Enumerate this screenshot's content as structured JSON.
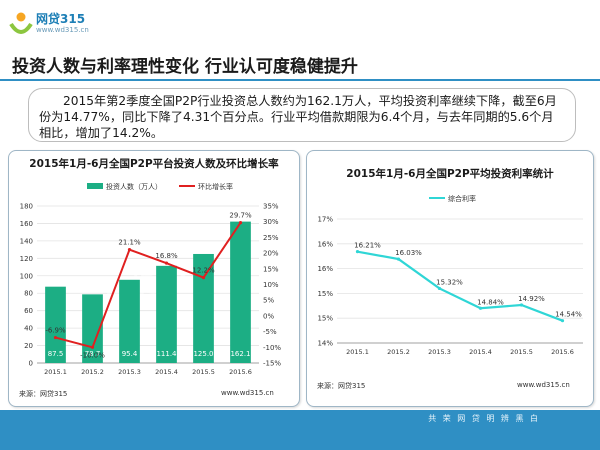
{
  "logo": {
    "name": "网贷315",
    "url": "www.wd315.cn"
  },
  "title": "投资人数与利率理性变化  行业认可度稳健提升",
  "summary": "2015年第2季度全国P2P行业投资总人数约为162.1万人，平均投资利率继续下降，截至6月份为14.77%，同比下降了4.31个百分点。行业平均借款期限为6.4个月，与去年同期的5.6个月相比，增加了14.2%。",
  "footer": {
    "slogan": "共 荣 网 贷   明 辨 黑 白"
  },
  "colors": {
    "accent": "#2f8fc4",
    "bar": "#1cae84",
    "line": "#e02020",
    "rate_line": "#2fd6d6"
  },
  "chart_data": [
    {
      "type": "bar",
      "title": "2015年1月-6月全国P2P平台投资人数及环比增长率",
      "categories": [
        "2015.1",
        "2015.2",
        "2015.3",
        "2015.4",
        "2015.5",
        "2015.6"
      ],
      "series": [
        {
          "name": "投资人数（万人）",
          "type": "bar",
          "values": [
            87.5,
            78.7,
            95.4,
            111.4,
            125.0,
            162.1
          ],
          "labels": [
            "87.5",
            "78.7",
            "95.4",
            "111.4",
            "125.0",
            "162.1"
          ]
        },
        {
          "name": "环比增长率",
          "type": "line",
          "axis": "right",
          "values": [
            -6.9,
            -10.0,
            21.1,
            16.8,
            12.2,
            29.7
          ],
          "labels": [
            "-6.9%",
            "-10.0%",
            "21.1%",
            "16.8%",
            "12.2%",
            "29.7%"
          ]
        }
      ],
      "ylim": [
        0,
        180
      ],
      "yticks": [
        "0",
        "20",
        "40",
        "60",
        "80",
        "100",
        "120",
        "140",
        "160",
        "180"
      ],
      "y2lim": [
        -15,
        35
      ],
      "y2ticks": [
        "-15%",
        "-10%",
        "-5%",
        "0%",
        "5%",
        "10%",
        "15%",
        "20%",
        "25%",
        "30%",
        "35%"
      ],
      "legend": "top",
      "grid": true,
      "watermark": "网贷315",
      "source": "来源：网贷315",
      "site": "www.wd315.cn"
    },
    {
      "type": "line",
      "title": "2015年1月-6月全国P2P平均投资利率统计",
      "categories": [
        "2015.1",
        "2015.2",
        "2015.3",
        "2015.4",
        "2015.5",
        "2015.6"
      ],
      "series": [
        {
          "name": "综合利率",
          "values": [
            16.21,
            16.03,
            15.32,
            14.84,
            14.92,
            14.54
          ],
          "labels": [
            "16.21%",
            "16.03%",
            "15.32%",
            "14.84%",
            "14.92%",
            "14.54%"
          ]
        }
      ],
      "ylim": [
        14,
        17
      ],
      "yticks": [
        "14%",
        "15%",
        "15%",
        "16%",
        "16%",
        "17%"
      ],
      "legend": "top",
      "grid": true,
      "source": "来源：网贷315",
      "site": "www.wd315.cn"
    }
  ]
}
